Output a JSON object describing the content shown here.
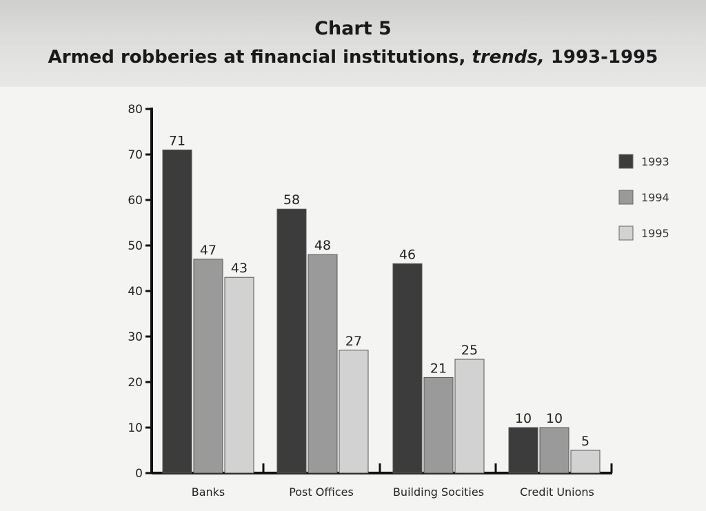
{
  "header": {
    "title": "Chart 5",
    "subtitle_main": "Armed robberies at financial institutions, ",
    "subtitle_italic": "trends,",
    "subtitle_years": " 1993-1995"
  },
  "chart_data": {
    "type": "bar",
    "title": "Chart 5",
    "subtitle": "Armed robberies at financial institutions, trends, 1993-1995",
    "categories": [
      "Banks",
      "Post Offices",
      "Building Socities",
      "Credit Unions"
    ],
    "series": [
      {
        "name": "1993",
        "values": [
          71,
          58,
          46,
          10
        ],
        "color": "#3c3c3c"
      },
      {
        "name": "1994",
        "values": [
          47,
          48,
          21,
          10
        ],
        "color": "#9a9a9a"
      },
      {
        "name": "1995",
        "values": [
          43,
          27,
          25,
          5
        ],
        "color": "#d2d2d2"
      }
    ],
    "ylim": [
      0,
      80
    ],
    "yticks": [
      0,
      10,
      20,
      30,
      40,
      50,
      60,
      70,
      80
    ],
    "xlabel": "",
    "ylabel": "",
    "grid": false,
    "legend_position": "right",
    "data_labels": true
  }
}
